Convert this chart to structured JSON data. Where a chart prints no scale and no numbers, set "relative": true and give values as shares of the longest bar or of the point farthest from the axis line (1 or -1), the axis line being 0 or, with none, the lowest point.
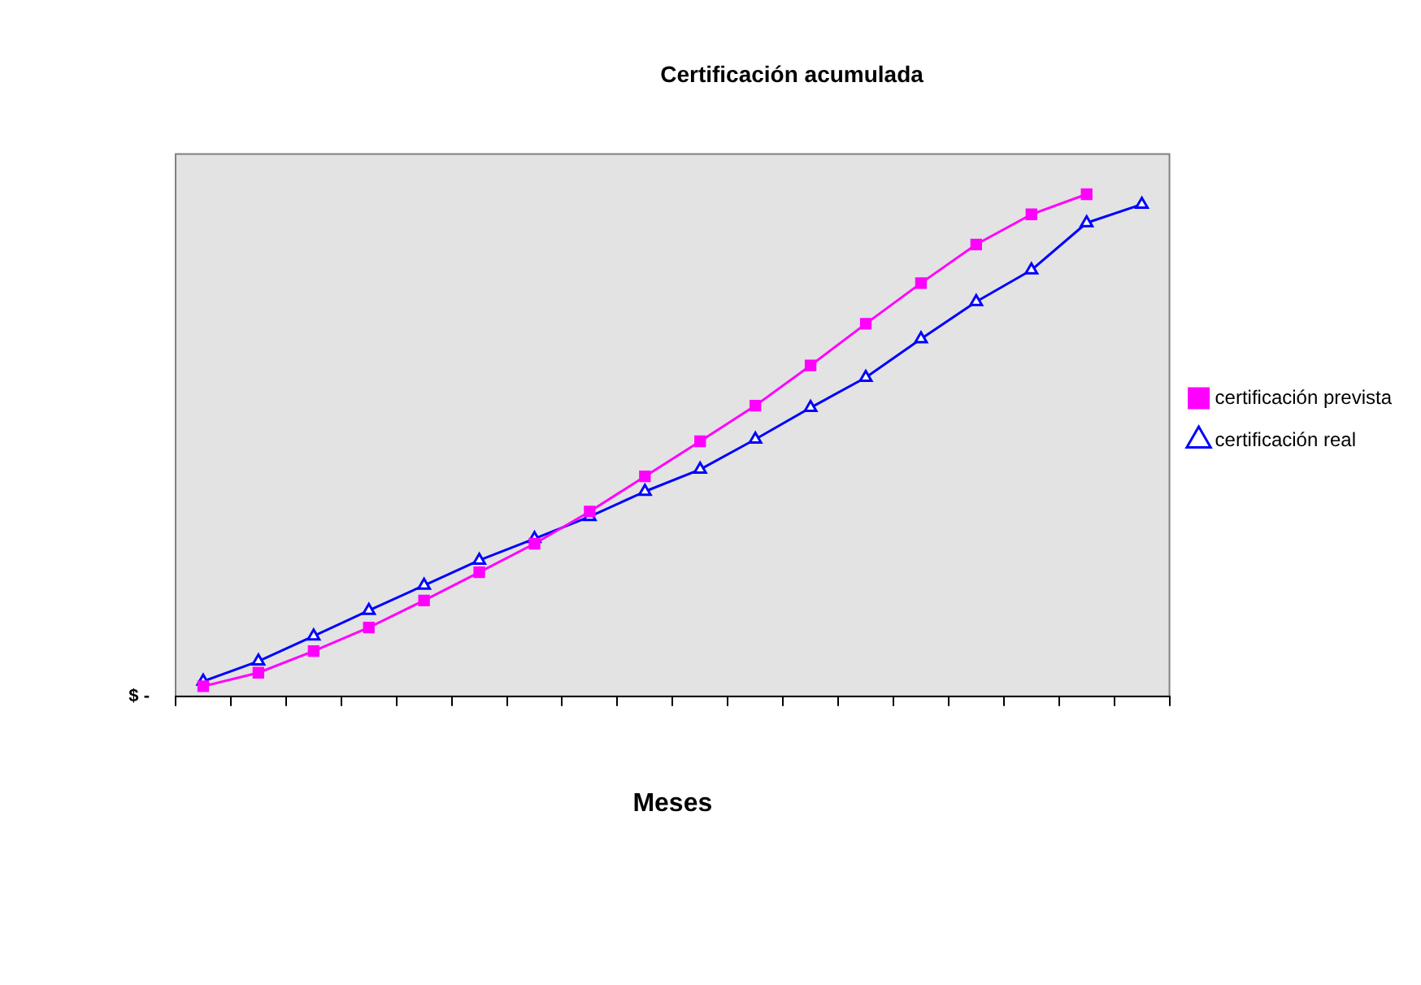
{
  "chart_data": {
    "type": "line",
    "title": "Certificación acumulada",
    "xlabel": "Meses",
    "relative": true,
    "legend": "right",
    "grid": false,
    "annotations": [
      "$ -"
    ],
    "categories": [
      null,
      null,
      null,
      null,
      null,
      null,
      null,
      null,
      null,
      null,
      null,
      null,
      null,
      null,
      null,
      null,
      null,
      null
    ],
    "series": [
      {
        "name": "certificación prevista",
        "color": "#ff00ff",
        "marker": "square",
        "values": [
          0.02,
          0.047,
          0.09,
          0.137,
          0.191,
          0.247,
          0.304,
          0.368,
          0.438,
          0.508,
          0.579,
          0.659,
          0.742,
          0.823,
          0.9,
          0.96,
          1,
          null
        ]
      },
      {
        "name": "certificación real",
        "color": "#0000ff",
        "marker": "triangle",
        "values": [
          0.03,
          0.07,
          0.12,
          0.171,
          0.221,
          0.271,
          0.314,
          0.358,
          0.408,
          0.452,
          0.512,
          0.575,
          0.635,
          0.712,
          0.786,
          0.849,
          0.943,
          0.98
        ]
      }
    ]
  }
}
